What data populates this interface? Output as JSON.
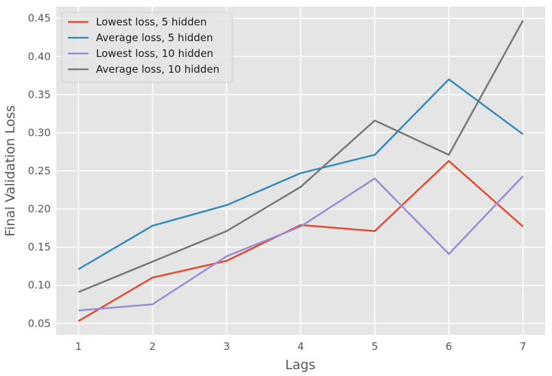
{
  "chart_data": {
    "type": "line",
    "title": "",
    "xlabel": "Lags",
    "ylabel": "Final Validation Loss",
    "x": [
      1,
      2,
      3,
      4,
      5,
      6,
      7
    ],
    "x_ticks": [
      "1",
      "2",
      "3",
      "4",
      "5",
      "6",
      "7"
    ],
    "y_ticks": [
      "0.05",
      "0.10",
      "0.15",
      "0.20",
      "0.25",
      "0.30",
      "0.35",
      "0.40",
      "0.45"
    ],
    "xlim": [
      0.7,
      7.3
    ],
    "ylim": [
      0.035,
      0.465
    ],
    "grid": true,
    "legend_position": "top-left",
    "background": "#e5e5e5",
    "series": [
      {
        "name": "Lowest loss, 5 hidden",
        "color": "#e24a33",
        "values": [
          0.053,
          0.11,
          0.132,
          0.179,
          0.171,
          0.263,
          0.177
        ]
      },
      {
        "name": "Average loss, 5 hidden",
        "color": "#348abd",
        "values": [
          0.121,
          0.178,
          0.205,
          0.247,
          0.271,
          0.37,
          0.298
        ]
      },
      {
        "name": "Lowest loss, 10 hidden",
        "color": "#988ed5",
        "values": [
          0.067,
          0.075,
          0.138,
          0.177,
          0.24,
          0.141,
          0.243
        ]
      },
      {
        "name": "Average loss, 10 hidden",
        "color": "#777777",
        "values": [
          0.091,
          0.131,
          0.171,
          0.229,
          0.316,
          0.271,
          0.447
        ]
      }
    ]
  }
}
